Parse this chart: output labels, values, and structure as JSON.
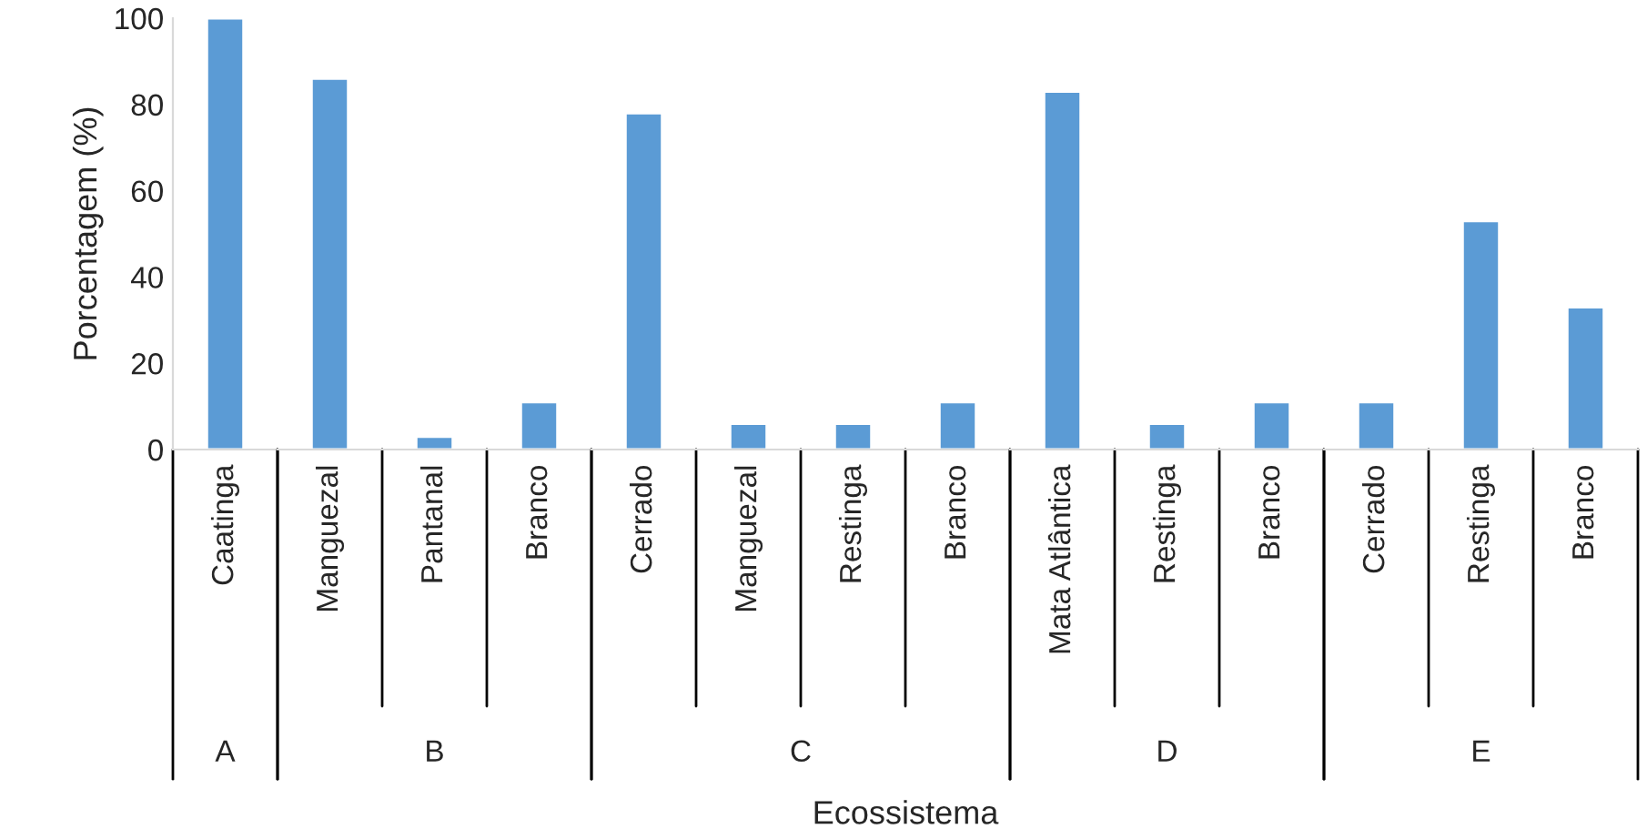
{
  "chart_data": [
    {
      "type": "bar",
      "xlabel": "A",
      "ylabel": "Porcentagem (%)",
      "annotations": [
        "Ecossistema"
      ],
      "categories": [
        "Caatinga"
      ],
      "values": [
        100
      ],
      "color": "#5b9bd5",
      "ylim": [
        0,
        100
      ],
      "yticks": [
        0,
        20,
        40,
        60,
        80,
        100
      ]
    },
    {
      "type": "bar",
      "xlabel": "B",
      "categories": [
        "Manguezal",
        "Pantanal",
        "Branco"
      ],
      "values": [
        86,
        3,
        11
      ],
      "color": "#5b9bd5",
      "ylim": [
        0,
        100
      ],
      "tick_labels": "x"
    },
    {
      "type": "bar",
      "xlabel": "C",
      "categories": [
        "Cerrado",
        "Manguezal",
        "Restinga",
        "Branco"
      ],
      "values": [
        78,
        6,
        6,
        11
      ],
      "color": "#5b9bd5",
      "ylim": [
        0,
        100
      ],
      "tick_labels": "x"
    },
    {
      "type": "bar",
      "xlabel": "D",
      "categories": [
        "Mata Atlântica",
        "Restinga",
        "Branco"
      ],
      "values": [
        83,
        6,
        11
      ],
      "color": "#5b9bd5",
      "ylim": [
        0,
        100
      ],
      "tick_labels": "x"
    },
    {
      "type": "bar",
      "xlabel": "E",
      "categories": [
        "Cerrado",
        "Restinga",
        "Branco"
      ],
      "values": [
        11,
        53,
        33
      ],
      "color": "#5b9bd5",
      "ylim": [
        0,
        100
      ],
      "tick_labels": "x"
    }
  ]
}
